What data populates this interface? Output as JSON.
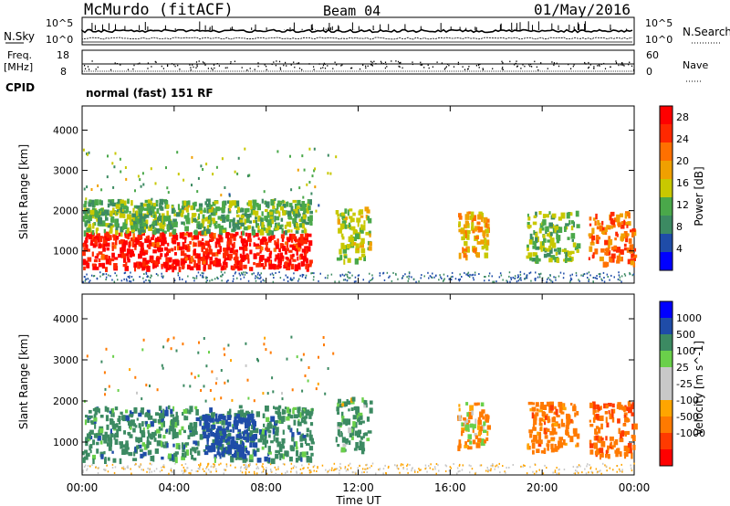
{
  "header": {
    "station": "McMurdo (fitACF)",
    "beam": "Beam 04",
    "date": "01/May/2016"
  },
  "top_panels": {
    "nsky_label": "N.Sky",
    "nsky_tick_top": "10^5",
    "nsky_tick_bottom": "10^0",
    "nsearch_label": "N.Search",
    "nsearch_tick_top": "10^5",
    "nsearch_tick_bottom": "10^0",
    "freq_label_1": "Freq.",
    "freq_label_2": "[MHz]",
    "freq_tick_top": "18",
    "freq_tick_bottom": "8",
    "nave_label": "Nave",
    "nave_tick_top": "60",
    "nave_tick_bottom": "0",
    "cpid_label": "CPID",
    "cpid_text": "normal (fast) 151 RF"
  },
  "colors": {
    "power_scale": [
      "#0000ff",
      "#1f4ca8",
      "#3c8a62",
      "#4aa84a",
      "#c8c800",
      "#f0a000",
      "#ff7000",
      "#ff2800",
      "#ff0000"
    ],
    "velocity_scale": [
      "#ff0000",
      "#ff3a00",
      "#ff7a00",
      "#ffa500",
      "#c8c8c8",
      "#c8c8c8",
      "#6ad04a",
      "#3c8a62",
      "#1f4ca8",
      "#0000ff"
    ]
  },
  "chart_data": [
    {
      "type": "heatmap",
      "name": "",
      "xlabel": "Time UT",
      "ylabel": "Slant Range [km]",
      "x_ticks": [
        "00:00",
        "04:00",
        "08:00",
        "12:00",
        "16:00",
        "20:00",
        "00:00"
      ],
      "y_ticks": [
        "1000",
        "2000",
        "3000",
        "4000"
      ],
      "ylim": [
        200,
        4600
      ],
      "xlim_hours": [
        0,
        24
      ],
      "colorbar": {
        "label": "Power [dB]",
        "ticks": [
          "4",
          "8",
          "12",
          "16",
          "20",
          "24",
          "28"
        ],
        "range": [
          0,
          30
        ]
      },
      "blobs": [
        {
          "t0": 0.0,
          "t1": 9.9,
          "r0": 600,
          "r1": 1500,
          "value": 27
        },
        {
          "t0": 0.0,
          "t1": 9.9,
          "r0": 1500,
          "r1": 2300,
          "value": 12
        },
        {
          "t0": 11.0,
          "t1": 12.5,
          "r0": 800,
          "r1": 2100,
          "value": 14
        },
        {
          "t0": 16.3,
          "t1": 17.6,
          "r0": 900,
          "r1": 2000,
          "value": 18
        },
        {
          "t0": 19.3,
          "t1": 21.5,
          "r0": 800,
          "r1": 2000,
          "value": 12
        },
        {
          "t0": 22.0,
          "t1": 24.0,
          "r0": 700,
          "r1": 2000,
          "value": 22
        }
      ]
    },
    {
      "type": "heatmap",
      "name": "",
      "xlabel": "Time UT",
      "ylabel": "Slant Range [km]",
      "x_ticks": [
        "00:00",
        "04:00",
        "08:00",
        "12:00",
        "16:00",
        "20:00",
        "00:00"
      ],
      "y_ticks": [
        "1000",
        "2000",
        "3000",
        "4000"
      ],
      "ylim": [
        200,
        4600
      ],
      "xlim_hours": [
        0,
        24
      ],
      "colorbar": {
        "label": "Velocity [m s^-1]",
        "ticks": [
          "1000",
          "500",
          "100",
          "25",
          "-25",
          "-100",
          "-500",
          "-1000"
        ],
        "range": [
          -1000,
          1000
        ]
      },
      "blobs": [
        {
          "t0": 0.0,
          "t1": 10.0,
          "r0": 600,
          "r1": 1900,
          "value": 300
        },
        {
          "t0": 5.0,
          "t1": 7.5,
          "r0": 700,
          "r1": 1700,
          "value": 900
        },
        {
          "t0": 11.0,
          "t1": 12.5,
          "r0": 800,
          "r1": 2100,
          "value": 200
        },
        {
          "t0": 16.3,
          "t1": 17.6,
          "r0": 900,
          "r1": 2000,
          "value": -150
        },
        {
          "t0": 19.3,
          "t1": 21.5,
          "r0": 800,
          "r1": 2000,
          "value": -300
        },
        {
          "t0": 22.0,
          "t1": 24.0,
          "r0": 700,
          "r1": 2000,
          "value": -400
        }
      ]
    }
  ]
}
